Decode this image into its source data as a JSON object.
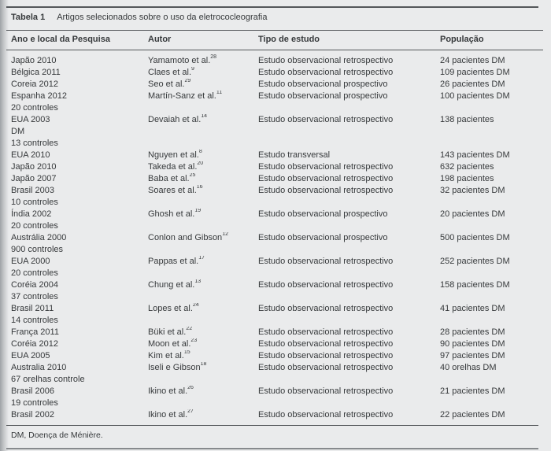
{
  "page": {
    "title_label": "Tabela 1",
    "title_text": "Artigos selecionados sobre o uso da eletrococleografia",
    "footnote": "DM, Doença de Ménière."
  },
  "table": {
    "columns": [
      "Ano e local da Pesquisa",
      "Autor",
      "Tipo de estudo",
      "População"
    ],
    "rows": [
      {
        "ano": "Japão 2010",
        "autor": "Yamamoto et al.",
        "ref": "28",
        "tipo": "Estudo observacional retrospectivo",
        "pop": "24 pacientes DM"
      },
      {
        "ano": "Bélgica 2011",
        "autor": "Claes et al.",
        "ref": "9",
        "tipo": "Estudo observacional retrospectivo",
        "pop": "109 pacientes DM"
      },
      {
        "ano": "Coreia 2012",
        "autor": "Seo et al.",
        "ref": "29",
        "tipo": "Estudo observacional prospectivo",
        "pop": "26 pacientes DM"
      },
      {
        "ano": "Espanha 2012\n20 controles",
        "autor": "Martín-Sanz et al.",
        "ref": "11",
        "tipo": "Estudo observacional prospectivo",
        "pop": "100 pacientes DM"
      },
      {
        "ano": "EUA 2003\nDM\n13 controles",
        "autor": "Devaiah et al.",
        "ref": "14",
        "tipo": "Estudo observacional retrospectivo",
        "pop": "138 pacientes"
      },
      {
        "ano": "EUA 2010",
        "autor": "Nguyen et al.",
        "ref": "8",
        "tipo": "Estudo transversal",
        "pop": "143 pacientes DM"
      },
      {
        "ano": "Japão 2010",
        "autor": "Takeda et al.",
        "ref": "20",
        "tipo": "Estudo observacional retrospectivo",
        "pop": "632 pacientes"
      },
      {
        "ano": "Japão 2007",
        "autor": "Baba et al.",
        "ref": "25",
        "tipo": "Estudo observacional retrospectivo",
        "pop": "198 pacientes"
      },
      {
        "ano": "Brasil 2003\n10 controles",
        "autor": "Soares et al.",
        "ref": "16",
        "tipo": "Estudo observacional retrospectivo",
        "pop": "32 pacientes DM"
      },
      {
        "ano": "Índia 2002\n20 controles",
        "autor": "Ghosh et al.",
        "ref": "19",
        "tipo": "Estudo observacional prospectivo",
        "pop": "20 pacientes DM"
      },
      {
        "ano": "Austrália 2000\n900 controles",
        "autor": "Conlon and Gibson",
        "ref": "12",
        "tipo": "Estudo observacional prospectivo",
        "pop": "500 pacientes DM"
      },
      {
        "ano": "EUA 2000\n20 controles",
        "autor": "Pappas et al.",
        "ref": "17",
        "tipo": "Estudo observacional retrospectivo",
        "pop": "252 pacientes DM"
      },
      {
        "ano": "Coréia 2004\n37 controles",
        "autor": "Chung et al.",
        "ref": "13",
        "tipo": "Estudo observacional retrospectivo",
        "pop": "158 pacientes DM"
      },
      {
        "ano": "Brasil 2011\n14 controles",
        "autor": "Lopes et al.",
        "ref": "24",
        "tipo": "Estudo observacional retrospectivo",
        "pop": "41 pacientes DM"
      },
      {
        "ano": "França 2011",
        "autor": "Büki et al.",
        "ref": "22",
        "tipo": "Estudo observacional retrospectivo",
        "pop": "28 pacientes DM"
      },
      {
        "ano": "Coréia 2012",
        "autor": "Moon et al.",
        "ref": "23",
        "tipo": "Estudo observacional retrospectivo",
        "pop": "90 pacientes DM"
      },
      {
        "ano": "EUA 2005",
        "autor": "Kim et al.",
        "ref": "15",
        "tipo": "Estudo observacional retrospectivo",
        "pop": "97 pacientes DM"
      },
      {
        "ano": "Australia 2010\n67 orelhas controle",
        "autor": "Iseli e Gibson",
        "ref": "18",
        "tipo": "Estudo observacional retrospectivo",
        "pop": "40 orelhas DM"
      },
      {
        "ano": "Brasil 2006\n19 controles",
        "autor": "Ikino et al.",
        "ref": "26",
        "tipo": "Estudo observacional retrospectivo",
        "pop": "21 pacientes DM"
      },
      {
        "ano": "Brasil 2002",
        "autor": "Ikino et al.",
        "ref": "27",
        "tipo": "Estudo observacional retrospectivo",
        "pop": "22 pacientes DM"
      }
    ]
  }
}
